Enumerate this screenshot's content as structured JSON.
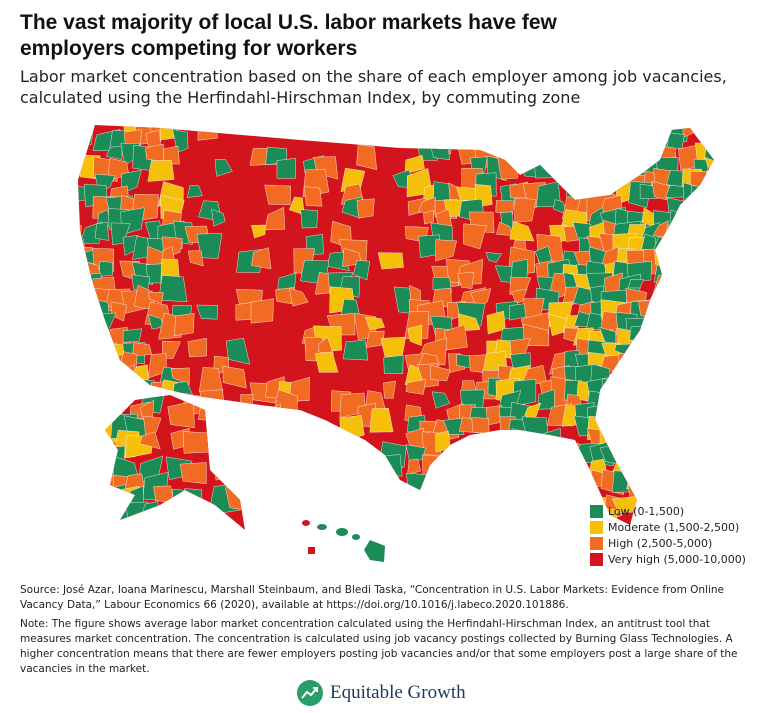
{
  "title": "The vast majority of local U.S. labor markets have few employers competing for workers",
  "subtitle": "Labor market concentration based on the share of each employer among job vacancies, calculated using the Herfindahl-Hirschman Index, by commuting zone",
  "legend": [
    {
      "label": "Low (0-1,500)",
      "color": "#1b8c57"
    },
    {
      "label": "Moderate (1,500-2,500)",
      "color": "#f5bf0a"
    },
    {
      "label": "High (2,500-5,000)",
      "color": "#f26b22"
    },
    {
      "label": "Very high (5,000-10,000)",
      "color": "#d4141c"
    }
  ],
  "source": "Source: José Azar, Ioana Marinescu, Marshall Steinbaum, and Bledi Taska, “Concentration in U.S. Labor Markets: Evidence from Online Vacancy Data,” Labour Economics 66 (2020), available at https://doi.org/10.1016/j.labeco.2020.101886.",
  "note": "Note: The figure shows average labor market concentration calculated using the Herfindahl-Hirschman Index, an antitrust tool that measures market concentration. The concentration is calculated using job vacancy postings collected by Burning Glass Technologies. A higher concentration means that there are fewer employers posting job vacancies and/or that some employers post a large share of the vacancies in the market.",
  "logo": "Equitable Growth"
}
